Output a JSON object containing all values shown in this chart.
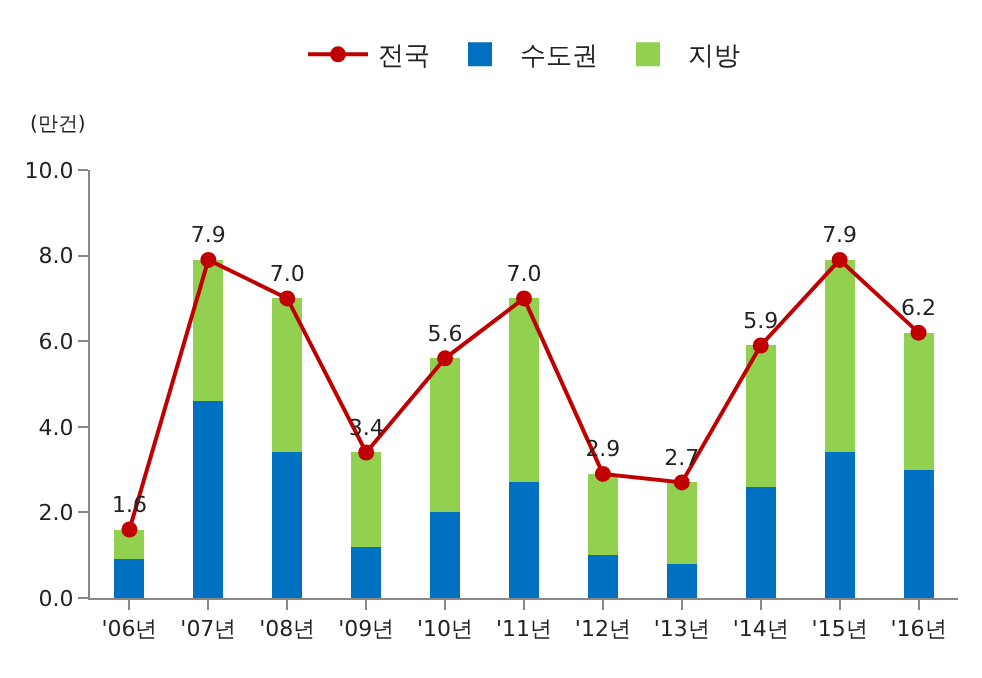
{
  "chart_data": {
    "type": "bar",
    "stacked": true,
    "ylabel": "(만건)",
    "categories": [
      "'06년",
      "'07년",
      "'08년",
      "'09년",
      "'10년",
      "'11년",
      "'12년",
      "'13년",
      "'14년",
      "'15년",
      "'16년"
    ],
    "series": [
      {
        "name": "전국",
        "type": "line",
        "color": "#c00000",
        "marker": "circle",
        "values": [
          1.6,
          7.9,
          7.0,
          3.4,
          5.6,
          7.0,
          2.9,
          2.7,
          5.9,
          7.9,
          6.2
        ],
        "value_labels": [
          "1.6",
          "7.9",
          "7.0",
          "3.4",
          "5.6",
          "7.0",
          "2.9",
          "2.7",
          "5.9",
          "7.9",
          "6.2"
        ]
      },
      {
        "name": "수도권",
        "color": "#0070c0",
        "values": [
          0.9,
          4.6,
          3.4,
          1.2,
          2.0,
          2.7,
          1.0,
          0.8,
          2.6,
          3.4,
          3.0
        ]
      },
      {
        "name": "지방",
        "color": "#92d050",
        "values": [
          0.7,
          3.3,
          3.6,
          2.2,
          3.6,
          4.3,
          1.9,
          1.9,
          3.3,
          4.5,
          3.2
        ]
      }
    ],
    "ylim": [
      0,
      10
    ],
    "yticks": [
      {
        "value": 0,
        "label": "0.0"
      },
      {
        "value": 2,
        "label": "2.0"
      },
      {
        "value": 4,
        "label": "4.0"
      },
      {
        "value": 6,
        "label": "6.0"
      },
      {
        "value": 8,
        "label": "8.0"
      },
      {
        "value": 10,
        "label": "10.0"
      }
    ],
    "grid": false,
    "legend": "top"
  }
}
